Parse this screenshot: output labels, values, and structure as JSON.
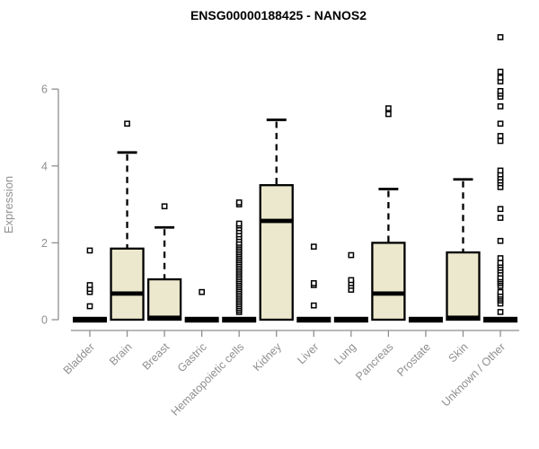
{
  "chart_data": {
    "type": "boxplot",
    "title": "ENSG00000188425 - NANOS2",
    "ylabel": "Expression",
    "xlabel": "",
    "ylim": [
      0,
      7.5
    ],
    "yticks": [
      0,
      2,
      4,
      6
    ],
    "grid": false,
    "legend": "none",
    "categories": [
      "Bladder",
      "Brain",
      "Breast",
      "Gastric",
      "Hematopoietic cells",
      "Kidney",
      "Liver",
      "Lung",
      "Pancreas",
      "Prostate",
      "Skin",
      "Unknown / Other"
    ],
    "boxes": [
      {
        "category": "Bladder",
        "q1": 0,
        "median": 0,
        "q3": 0,
        "whisker_low": 0,
        "whisker_high": 0,
        "outliers": [
          0.35,
          0.72,
          0.8,
          0.9,
          1.8
        ]
      },
      {
        "category": "Brain",
        "q1": 0,
        "median": 0.68,
        "q3": 1.85,
        "whisker_low": 0,
        "whisker_high": 4.35,
        "outliers": [
          5.1
        ]
      },
      {
        "category": "Breast",
        "q1": 0,
        "median": 0.05,
        "q3": 1.05,
        "whisker_low": 0,
        "whisker_high": 2.4,
        "outliers": [
          2.95
        ]
      },
      {
        "category": "Gastric",
        "q1": 0,
        "median": 0,
        "q3": 0,
        "whisker_low": 0,
        "whisker_high": 0,
        "outliers": [
          0.72
        ]
      },
      {
        "category": "Hematopoietic cells",
        "q1": 0,
        "median": 0,
        "q3": 0,
        "whisker_low": 0,
        "whisker_high": 0,
        "outliers": [
          0.2,
          0.25,
          0.3,
          0.35,
          0.4,
          0.45,
          0.5,
          0.55,
          0.6,
          0.65,
          0.7,
          0.75,
          0.8,
          0.85,
          0.9,
          0.95,
          1.0,
          1.05,
          1.1,
          1.15,
          1.2,
          1.25,
          1.3,
          1.35,
          1.4,
          1.45,
          1.5,
          1.55,
          1.6,
          1.65,
          1.7,
          1.75,
          1.8,
          1.85,
          1.9,
          1.95,
          2.0,
          2.08,
          2.15,
          2.22,
          2.3,
          2.38,
          2.45,
          2.5,
          3.0,
          3.05
        ]
      },
      {
        "category": "Kidney",
        "q1": 0,
        "median": 2.57,
        "q3": 3.5,
        "whisker_low": 0,
        "whisker_high": 5.2,
        "outliers": []
      },
      {
        "category": "Liver",
        "q1": 0,
        "median": 0,
        "q3": 0,
        "whisker_low": 0,
        "whisker_high": 0,
        "outliers": [
          0.37,
          0.9,
          0.95,
          1.9
        ]
      },
      {
        "category": "Lung",
        "q1": 0,
        "median": 0,
        "q3": 0,
        "whisker_low": 0,
        "whisker_high": 0,
        "outliers": [
          0.78,
          0.88,
          0.95,
          1.03,
          1.68
        ]
      },
      {
        "category": "Pancreas",
        "q1": 0,
        "median": 0.68,
        "q3": 2.0,
        "whisker_low": 0,
        "whisker_high": 3.4,
        "outliers": [
          5.35,
          5.5
        ]
      },
      {
        "category": "Prostate",
        "q1": 0,
        "median": 0,
        "q3": 0,
        "whisker_low": 0,
        "whisker_high": 0,
        "outliers": []
      },
      {
        "category": "Skin",
        "q1": 0,
        "median": 0.05,
        "q3": 1.75,
        "whisker_low": 0,
        "whisker_high": 3.65,
        "outliers": []
      },
      {
        "category": "Unknown / Other",
        "q1": 0,
        "median": 0,
        "q3": 0,
        "whisker_low": 0,
        "whisker_high": 0,
        "outliers": [
          0.2,
          0.42,
          0.5,
          0.55,
          0.6,
          0.65,
          0.72,
          0.88,
          0.95,
          1.0,
          1.05,
          1.1,
          1.2,
          1.28,
          1.35,
          1.42,
          1.48,
          1.6,
          2.05,
          2.65,
          2.88,
          3.45,
          3.55,
          3.62,
          3.7,
          3.78,
          3.88,
          4.65,
          4.78,
          5.1,
          5.55,
          5.8,
          5.88,
          5.95,
          6.2,
          6.3,
          6.45,
          7.35
        ]
      }
    ],
    "styles": {
      "box_fill": "#ece8cd",
      "box_stroke": "#000000",
      "median_color": "#000000",
      "whisker_color": "#000000",
      "outlier_fill": "#ffffff",
      "outlier_stroke": "#000000",
      "axis_color": "#8f8f8f",
      "tick_label_color": "#8f8f8f",
      "title_color": "#000000",
      "background": "#ffffff"
    }
  }
}
